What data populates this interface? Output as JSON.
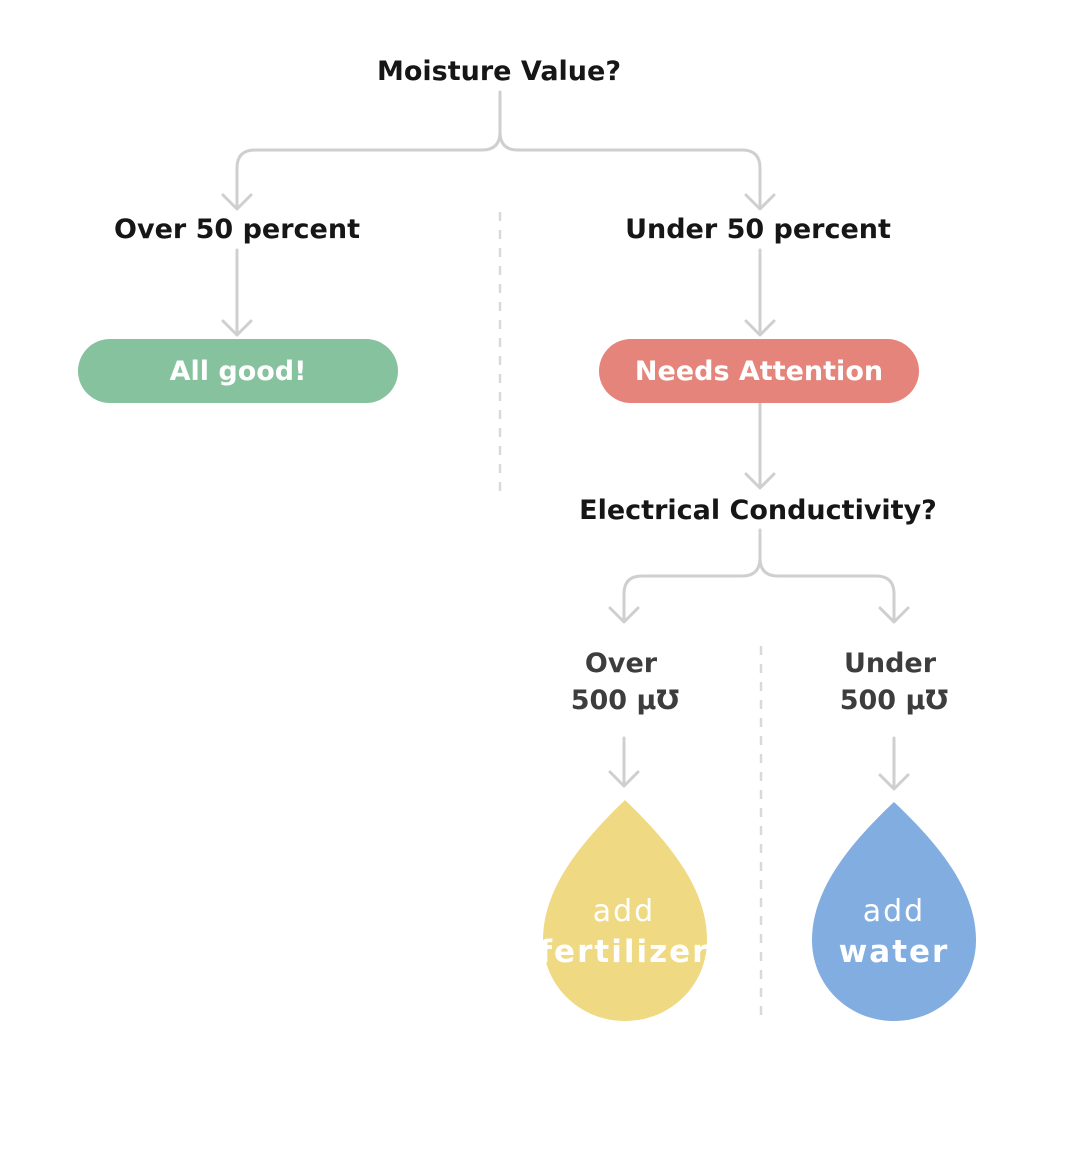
{
  "root": {
    "question": "Moisture Value?"
  },
  "moisture": {
    "over_label": "Over 50 percent",
    "under_label": "Under 50 percent"
  },
  "outcomes": {
    "good": "All good!",
    "attention": "Needs Attention"
  },
  "conductivity": {
    "question": "Electrical Conductivity?",
    "over_line1": "Over",
    "over_line2": "500 µ℧",
    "under_line1": "Under",
    "under_line2": "500 µ℧"
  },
  "actions": {
    "fertilizer": {
      "line1": "add",
      "line2": "fertilizer"
    },
    "water": {
      "line1": "add",
      "line2": "water"
    }
  },
  "colors": {
    "connector": "#cfcfcf",
    "good": "#86c29e",
    "attention": "#e5847a",
    "fertilizer": "#efd982",
    "water": "#82ade0"
  }
}
